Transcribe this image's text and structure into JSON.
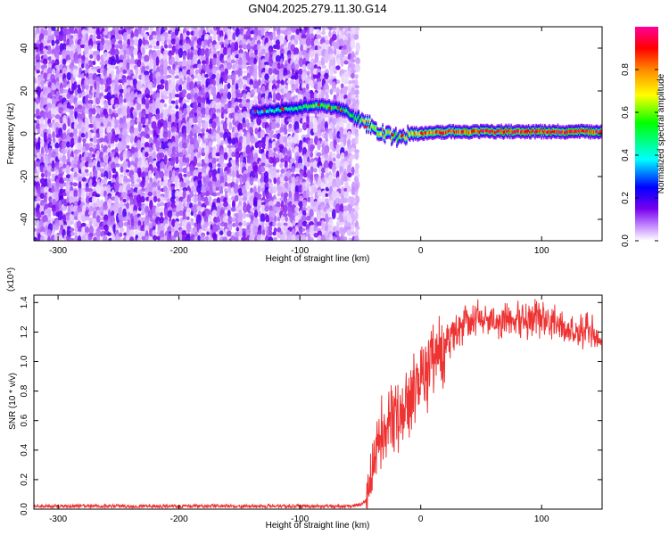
{
  "figure": {
    "title": "GN04.2025.279.11.30.G14"
  },
  "chart_data": [
    {
      "type": "heatmap",
      "xlabel": "Height of straight line (km)",
      "ylabel": "Frequency (Hz)",
      "xlim": [
        -320,
        150
      ],
      "ylim": [
        -50,
        50
      ],
      "xticks": [
        -300,
        -200,
        -100,
        0,
        100
      ],
      "yticks": [
        -40,
        -20,
        0,
        20,
        40
      ],
      "colorbar": {
        "label": "Normalized spectral amplitude",
        "range": [
          0,
          1
        ],
        "ticks": [
          0.0,
          0.2,
          0.4,
          0.6,
          0.8
        ],
        "colors": [
          "#ffffff",
          "#cc99ff",
          "#7700ee",
          "#0000ff",
          "#00ffff",
          "#00ff00",
          "#ffff00",
          "#ff8800",
          "#ff0000",
          "#ff0099"
        ]
      },
      "noise_region": {
        "x": [
          -320,
          -55
        ],
        "y": [
          -50,
          50
        ]
      },
      "signal_ridge": {
        "x": [
          -140,
          -120,
          -100,
          -90,
          -80,
          -70,
          -60,
          -55,
          -50,
          -45,
          -40,
          -35,
          -30,
          -25,
          -20,
          -15,
          -10,
          0,
          20,
          40,
          60,
          80,
          100,
          120,
          150
        ],
        "y": [
          10,
          11,
          12,
          13,
          13,
          12,
          10,
          8,
          6,
          5,
          3,
          1,
          0,
          -1,
          -2,
          -1,
          0,
          0,
          1,
          1,
          1,
          1,
          1,
          1,
          1
        ],
        "peak_amplitude": [
          0.3,
          0.45,
          0.5,
          0.55,
          0.55,
          0.5,
          0.5,
          0.55,
          0.6,
          0.65,
          0.7,
          0.7,
          0.7,
          0.65,
          0.6,
          0.65,
          0.7,
          0.8,
          0.85,
          0.85,
          0.9,
          0.9,
          0.9,
          0.9,
          0.9
        ]
      },
      "grid": false,
      "legend": "none"
    },
    {
      "type": "line",
      "xlabel": "Height of straight line (km)",
      "ylabel": "SNR (10 * v/v)",
      "yscale_label": "(x10⁴)",
      "xlim": [
        -320,
        150
      ],
      "ylim": [
        0,
        1.45
      ],
      "xticks": [
        -300,
        -200,
        -100,
        0,
        100
      ],
      "yticks": [
        0.0,
        0.2,
        0.4,
        0.6,
        0.8,
        1.0,
        1.2,
        1.4
      ],
      "color": "#ee3333",
      "series": [
        {
          "x": [
            -320,
            -300,
            -200,
            -100,
            -60,
            -50,
            -45,
            -40,
            -35,
            -30,
            -25,
            -20,
            -15,
            -10,
            -5,
            0,
            5,
            10,
            15,
            20,
            30,
            40,
            50,
            60,
            70,
            80,
            90,
            100,
            110,
            120,
            130,
            140,
            150
          ],
          "y": [
            0.02,
            0.02,
            0.02,
            0.02,
            0.02,
            0.03,
            0.06,
            0.2,
            0.38,
            0.5,
            0.55,
            0.6,
            0.7,
            0.75,
            0.78,
            0.85,
            0.92,
            1.0,
            1.05,
            1.1,
            1.22,
            1.28,
            1.3,
            1.3,
            1.28,
            1.27,
            1.28,
            1.3,
            1.25,
            1.22,
            1.2,
            1.2,
            1.18
          ]
        }
      ],
      "grid": false,
      "legend": "none"
    }
  ]
}
